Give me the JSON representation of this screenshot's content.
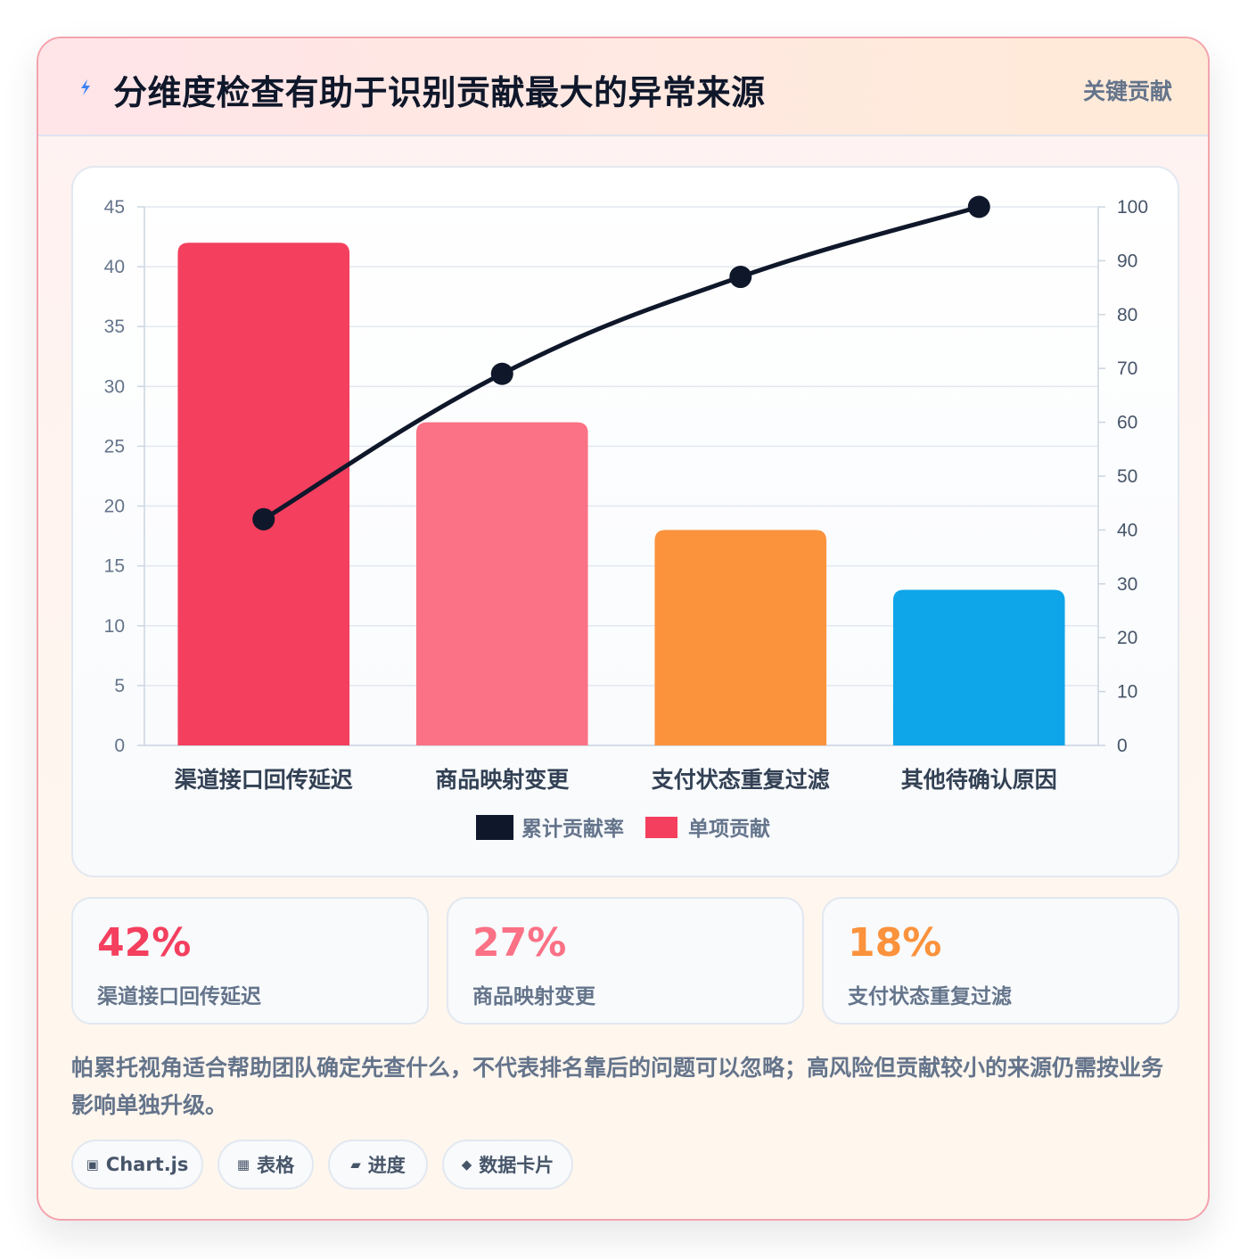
{
  "header": {
    "icon": "lightning-icon",
    "title": "分维度检查有助于识别贡献最大的异常来源",
    "tag": "关键贡献"
  },
  "colors": {
    "bar1": "#f43f5e",
    "bar2": "#fb7185",
    "bar3": "#fb923c",
    "bar4": "#0ea5e9",
    "line": "#0f172a",
    "axis_text": "#64748b",
    "label_text": "#334155"
  },
  "chart_data": {
    "type": "bar",
    "categories": [
      "渠道接口回传延迟",
      "商品映射变更",
      "支付状态重复过滤",
      "其他待确认原因"
    ],
    "series": [
      {
        "name": "累计贡献率",
        "type": "line",
        "axis": "right",
        "values": [
          42,
          69,
          87,
          100
        ]
      },
      {
        "name": "单项贡献",
        "type": "bar",
        "axis": "left",
        "values": [
          42,
          27,
          18,
          13
        ]
      }
    ],
    "ylim_left": [
      0,
      45
    ],
    "yticks_left": [
      0,
      5,
      10,
      15,
      20,
      25,
      30,
      35,
      40,
      45
    ],
    "ylim_right": [
      0,
      100
    ],
    "yticks_right": [
      0,
      10,
      20,
      30,
      40,
      50,
      60,
      70,
      80,
      90,
      100
    ],
    "grid": true,
    "legend_position": "bottom"
  },
  "stats": [
    {
      "value": "42%",
      "label": "渠道接口回传延迟",
      "color": "#f43f5e"
    },
    {
      "value": "27%",
      "label": "商品映射变更",
      "color": "#fb7185"
    },
    {
      "value": "18%",
      "label": "支付状态重复过滤",
      "color": "#fb923c"
    }
  ],
  "note": "帕累托视角适合帮助团队确定先查什么，不代表排名靠后的问题可以忽略；高风险但贡献较小的来源仍需按业务影响单独升级。",
  "chips": [
    {
      "icon": "chart-icon",
      "glyph": "▣",
      "label": "Chart.js"
    },
    {
      "icon": "table-icon",
      "glyph": "▦",
      "label": "表格"
    },
    {
      "icon": "progress-icon",
      "glyph": "▰",
      "label": "进度"
    },
    {
      "icon": "diamond-icon",
      "glyph": "◆",
      "label": "数据卡片"
    }
  ]
}
